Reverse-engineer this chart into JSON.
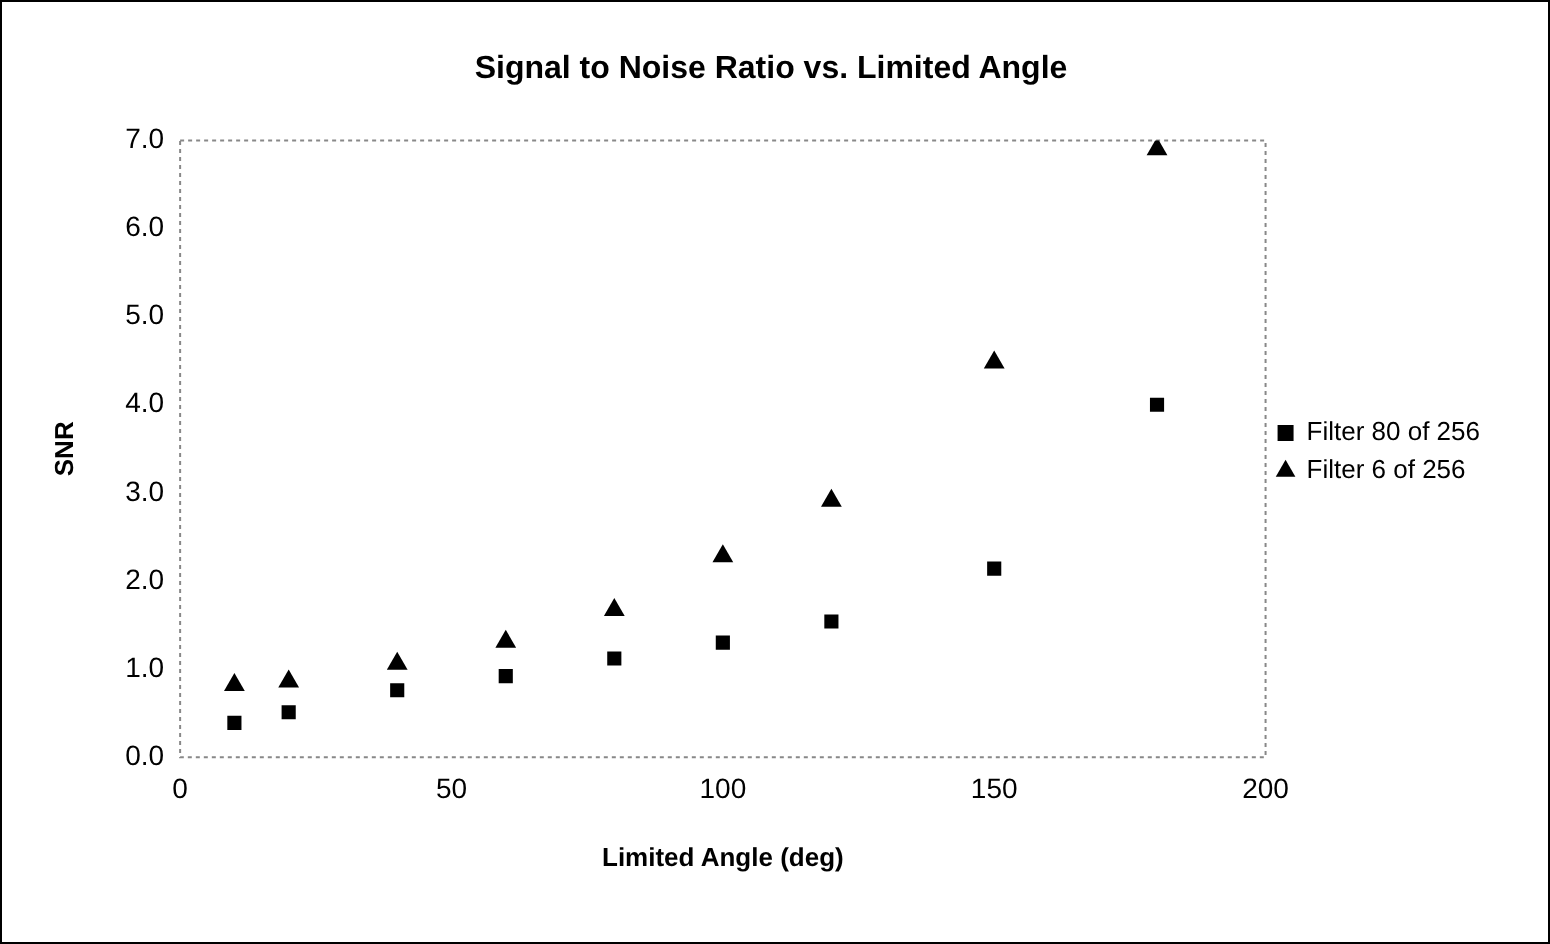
{
  "chart_data": {
    "type": "scatter",
    "title": "Signal to Noise Ratio vs. Limited Angle",
    "xlabel": "Limited Angle (deg)",
    "ylabel": "SNR",
    "x": [
      10,
      20,
      40,
      60,
      80,
      100,
      120,
      150,
      180
    ],
    "series": [
      {
        "name": "Filter 80 of 256",
        "color": "#000000",
        "marker": "square",
        "values": [
          0.39,
          0.51,
          0.76,
          0.92,
          1.12,
          1.3,
          1.54,
          2.14,
          4.0
        ]
      },
      {
        "name": "Filter 6 of 256",
        "color": "#000000",
        "marker": "triangle",
        "values": [
          0.82,
          0.86,
          1.06,
          1.31,
          1.67,
          2.28,
          2.91,
          4.48,
          6.9
        ]
      }
    ],
    "xlim": [
      0,
      200
    ],
    "xticks": [
      0,
      50,
      100,
      150,
      200
    ],
    "ylim": [
      0,
      7
    ],
    "yticks": [
      {
        "value": 0,
        "label": "0.0"
      },
      {
        "value": 1,
        "label": "1.0"
      },
      {
        "value": 2,
        "label": "2.0"
      },
      {
        "value": 3,
        "label": "3.0"
      },
      {
        "value": 4,
        "label": "4.0"
      },
      {
        "value": 5,
        "label": "5.0"
      },
      {
        "value": 6,
        "label": "6.0"
      },
      {
        "value": 7,
        "label": "7.0"
      }
    ],
    "grid": false,
    "legend": "right"
  }
}
